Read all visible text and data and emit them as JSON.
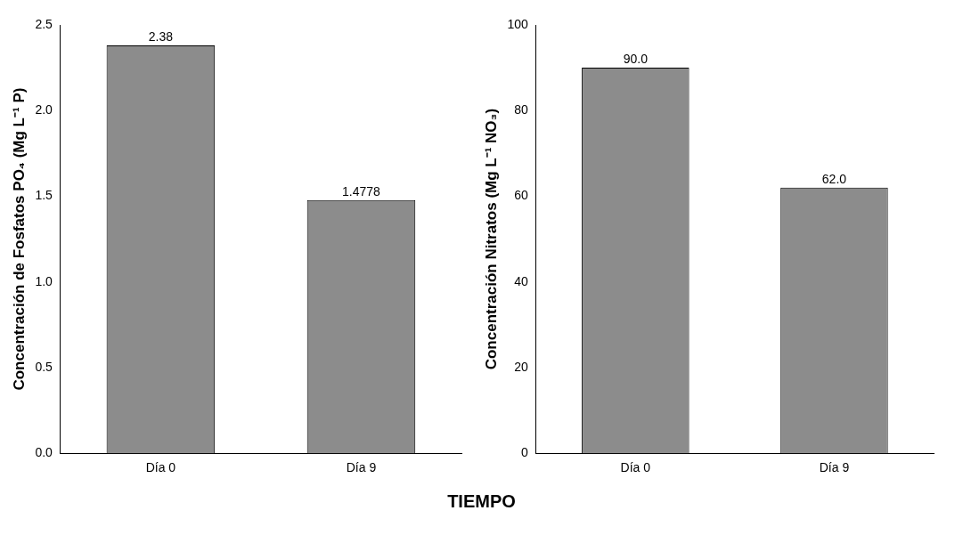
{
  "chart_data": [
    {
      "type": "bar",
      "ylabel": "Concentración de Fosfatos PO₄ (Mg L⁻¹ P)",
      "categories": [
        "Día 0",
        "Día 9"
      ],
      "values": [
        2.38,
        1.4778
      ],
      "value_labels": [
        "2.38",
        "1.4778"
      ],
      "color": "#8c8c8c",
      "ylim": [
        0,
        2.5
      ],
      "yticks": [
        {
          "value": 0,
          "label": "0.0"
        },
        {
          "value": 0.5,
          "label": "0.5"
        },
        {
          "value": 1,
          "label": "1.0"
        },
        {
          "value": 1.5,
          "label": "1.5"
        },
        {
          "value": 2,
          "label": "2.0"
        },
        {
          "value": 2.5,
          "label": "2.5"
        }
      ],
      "grid": false,
      "legend": false
    },
    {
      "type": "bar",
      "xlabel": "TIEMPO",
      "ylabel": "Concentración Nitratos (Mg L⁻¹ NO₃)",
      "categories": [
        "Día 0",
        "Día 9"
      ],
      "values": [
        90,
        62
      ],
      "value_labels": [
        "90.0",
        "62.0"
      ],
      "color": "#8c8c8c",
      "ylim": [
        0,
        100
      ],
      "yticks": [
        0,
        20,
        40,
        60,
        80,
        100
      ],
      "grid": false,
      "legend": false
    }
  ]
}
